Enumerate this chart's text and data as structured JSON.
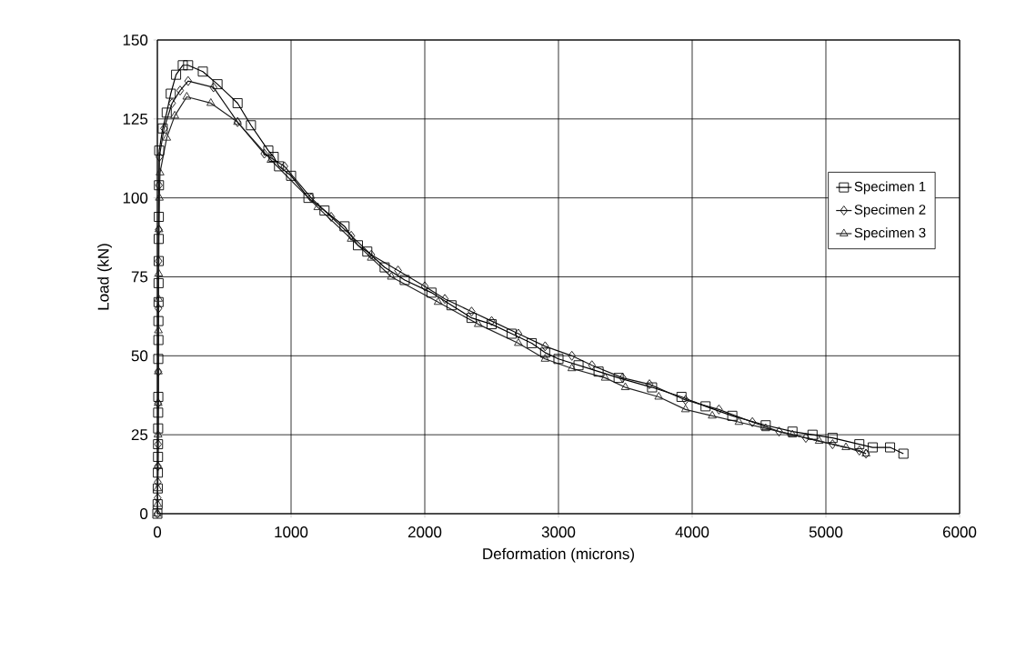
{
  "chart_data": {
    "type": "line",
    "xlabel": "Deformation (microns)",
    "ylabel": "Load (kN)",
    "xlim": [
      0,
      6000
    ],
    "ylim": [
      0,
      150
    ],
    "xticks": [
      0,
      1000,
      2000,
      3000,
      4000,
      5000,
      6000
    ],
    "yticks": [
      0,
      25,
      50,
      75,
      100,
      125,
      150
    ],
    "grid": true,
    "legend": "right",
    "line_style": "solid",
    "series": [
      {
        "name": "Specimen 1",
        "color": "#000000",
        "marker": "square",
        "x": [
          0,
          2,
          3,
          4,
          5,
          5,
          6,
          6,
          7,
          7,
          8,
          8,
          9,
          9,
          10,
          10,
          11,
          12,
          14,
          40,
          70,
          100,
          140,
          190,
          230,
          340,
          450,
          600,
          700,
          830,
          870,
          910,
          1000,
          1130,
          1250,
          1400,
          1500,
          1570,
          1700,
          1850,
          2050,
          2200,
          2350,
          2500,
          2650,
          2800,
          2900,
          3000,
          3150,
          3300,
          3450,
          3700,
          3920,
          4100,
          4300,
          4550,
          4750,
          4900,
          5050,
          5250,
          5350,
          5480,
          5580
        ],
        "values": [
          0,
          3,
          8,
          13,
          18,
          22,
          27,
          32,
          37,
          49,
          55,
          61,
          67,
          73,
          80,
          87,
          94,
          104,
          115,
          122,
          127,
          133,
          139,
          142,
          142,
          140,
          136,
          130,
          123,
          115,
          113,
          110,
          107,
          100,
          96,
          91,
          85,
          83,
          78,
          74,
          70,
          66,
          62,
          60,
          57,
          54,
          51,
          49,
          47,
          45,
          43,
          40,
          37,
          34,
          31,
          28,
          26,
          25,
          24,
          22,
          21,
          21,
          19
        ]
      },
      {
        "name": "Specimen 2",
        "color": "#111111",
        "marker": "diamond",
        "x": [
          0,
          2,
          3,
          4,
          5,
          6,
          7,
          8,
          9,
          10,
          12,
          15,
          50,
          110,
          170,
          230,
          420,
          600,
          800,
          950,
          1150,
          1300,
          1450,
          1600,
          1800,
          2000,
          2150,
          2350,
          2500,
          2700,
          2900,
          3100,
          3250,
          3480,
          3680,
          3950,
          4200,
          4450,
          4650,
          4850,
          5050,
          5250,
          5300
        ],
        "values": [
          0,
          5,
          10,
          15,
          22,
          35,
          45,
          65,
          80,
          90,
          104,
          113,
          122,
          130,
          134,
          137,
          135,
          124,
          114,
          110,
          100,
          94,
          88,
          82,
          77,
          72,
          68,
          64,
          61,
          57,
          53,
          50,
          47,
          43,
          41,
          36,
          33,
          29,
          26,
          24,
          22,
          20,
          19
        ]
      },
      {
        "name": "Specimen 3",
        "color": "#222222",
        "marker": "triangle",
        "x": [
          0,
          2,
          3,
          4,
          5,
          6,
          7,
          8,
          9,
          10,
          12,
          15,
          20,
          70,
          130,
          220,
          400,
          600,
          850,
          1200,
          1450,
          1600,
          1750,
          2100,
          2400,
          2700,
          2900,
          3100,
          3350,
          3500,
          3750,
          3950,
          4150,
          4350,
          4550,
          4750,
          4950,
          5150,
          5300
        ],
        "values": [
          0,
          3,
          8,
          15,
          25,
          35,
          45,
          58,
          68,
          76,
          90,
          100,
          108,
          119,
          126,
          132,
          130,
          124,
          112,
          97,
          87,
          81,
          75,
          67,
          60,
          54,
          49,
          46,
          43,
          40,
          37,
          33,
          31,
          29,
          27,
          25,
          23,
          21,
          19
        ]
      }
    ]
  }
}
